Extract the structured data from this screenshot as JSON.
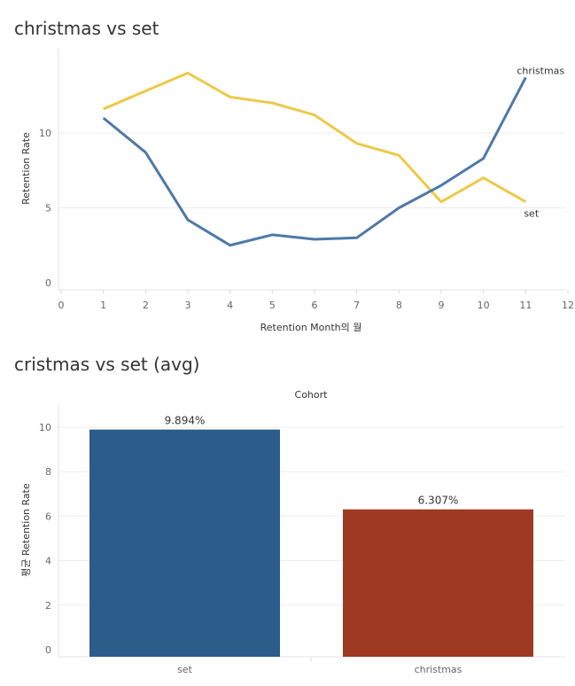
{
  "chart_data": [
    {
      "type": "line",
      "title": "christmas vs set",
      "xlabel": "Retention Month의 월",
      "ylabel": "Retention Rate",
      "xlim": [
        0,
        12
      ],
      "ylim": [
        0,
        15
      ],
      "x_ticks": [
        0,
        1,
        2,
        3,
        4,
        5,
        6,
        7,
        8,
        9,
        10,
        11,
        12
      ],
      "y_ticks": [
        0,
        5,
        10
      ],
      "grid": true,
      "series": [
        {
          "name": "christmas",
          "color": "#4e79a7",
          "x": [
            1,
            2,
            3,
            4,
            5,
            6,
            7,
            8,
            9,
            10,
            11
          ],
          "values": [
            11.0,
            8.7,
            4.2,
            2.5,
            3.2,
            2.9,
            3.0,
            5.0,
            6.5,
            8.3,
            13.7
          ]
        },
        {
          "name": "set",
          "color": "#edc948",
          "x": [
            1,
            2,
            3,
            4,
            5,
            6,
            7,
            8,
            9,
            10,
            11
          ],
          "values": [
            11.6,
            12.8,
            14.0,
            12.4,
            12.0,
            11.2,
            9.3,
            8.5,
            5.4,
            7.0,
            5.4
          ]
        }
      ]
    },
    {
      "type": "bar",
      "title": "cristmas vs set (avg)",
      "header": "Cohort",
      "ylabel": "평균 Retention Rate",
      "ylim": [
        0,
        10.9
      ],
      "y_ticks": [
        0,
        2,
        4,
        6,
        8,
        10
      ],
      "categories": [
        "set",
        "christmas"
      ],
      "values": [
        9.894,
        6.307
      ],
      "data_labels": [
        "9.894%",
        "6.307%"
      ],
      "colors": [
        "#2c5c8a",
        "#9e3a22"
      ]
    }
  ]
}
